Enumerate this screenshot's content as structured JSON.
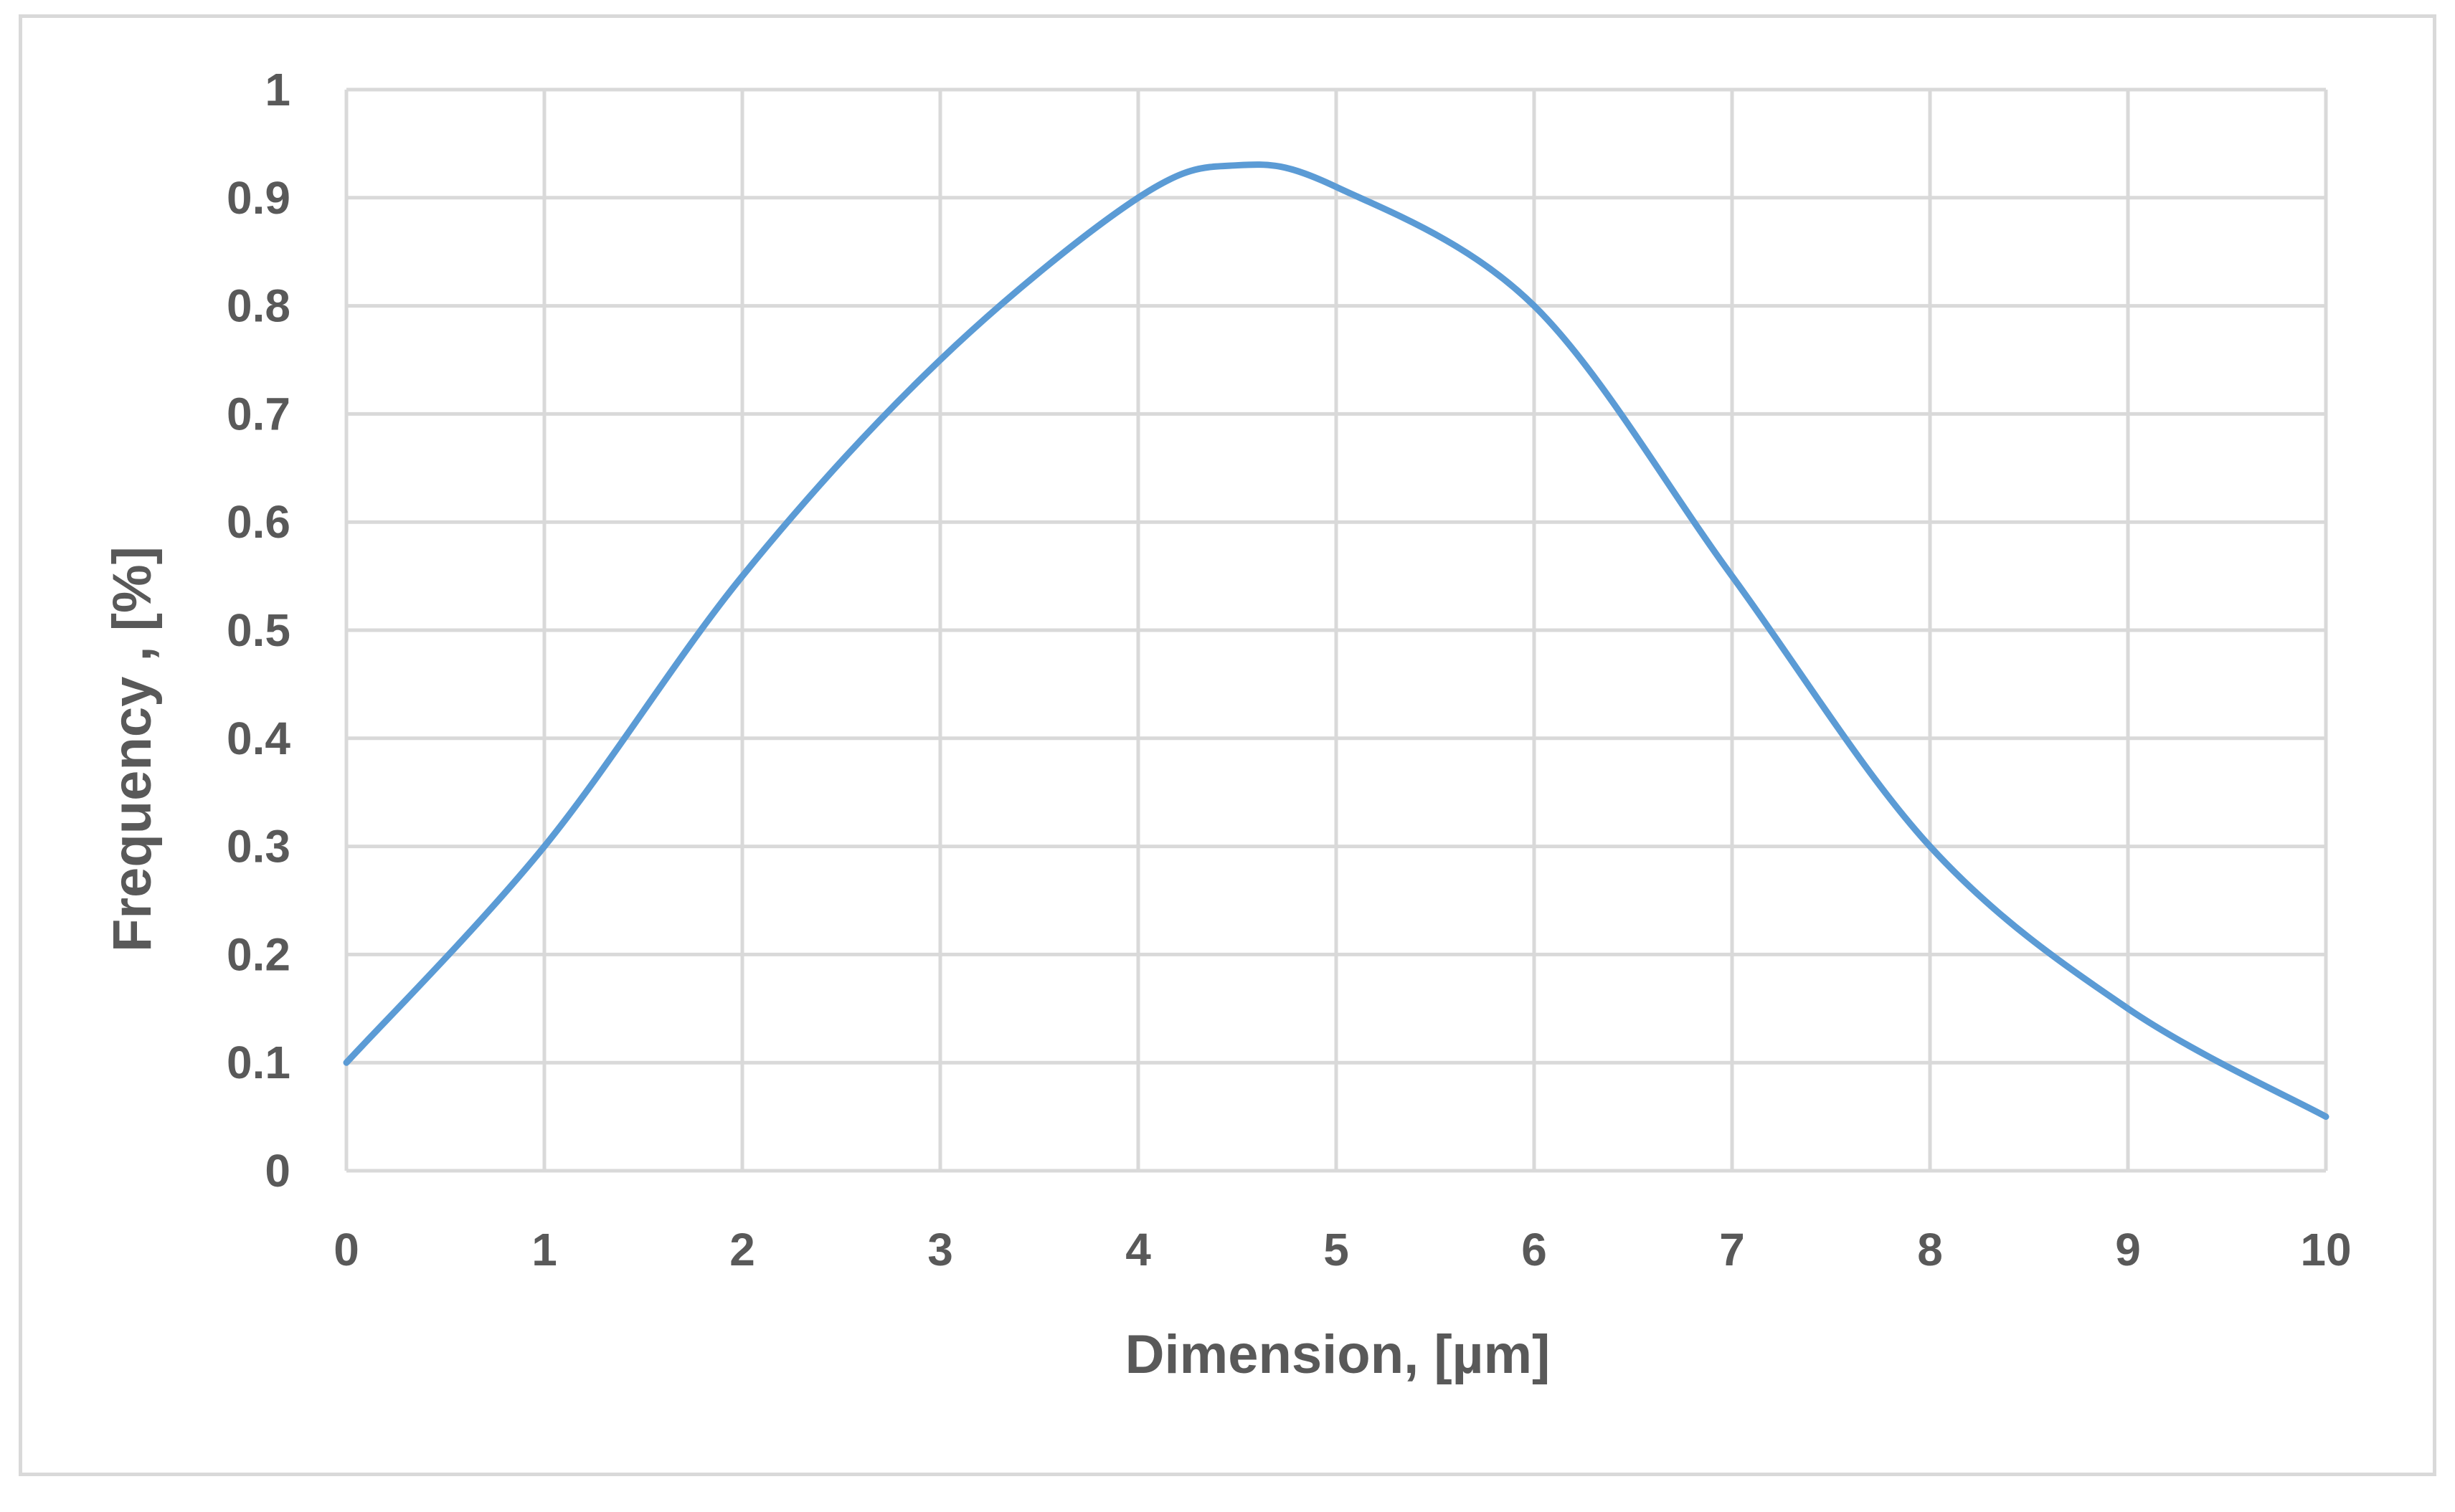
{
  "chart_data": {
    "type": "line",
    "title": "",
    "xlabel": "Dimension, [µm]",
    "ylabel": "Frequency , [%]",
    "xlim": [
      0,
      10
    ],
    "ylim": [
      0,
      1
    ],
    "x_ticks": [
      "0",
      "1",
      "2",
      "3",
      "4",
      "5",
      "6",
      "7",
      "8",
      "9",
      "10"
    ],
    "y_ticks": [
      "0",
      "0.1",
      "0.2",
      "0.3",
      "0.4",
      "0.5",
      "0.6",
      "0.7",
      "0.8",
      "0.9",
      "1"
    ],
    "grid": true,
    "legend": "none",
    "series": [
      {
        "color": "#5b9bd5",
        "smooth": true,
        "x": [
          0,
          1,
          2,
          3,
          4,
          4.5,
          5,
          6,
          7,
          8,
          9,
          10
        ],
        "y": [
          0.1,
          0.3,
          0.55,
          0.75,
          0.9,
          0.93,
          0.91,
          0.8,
          0.55,
          0.3,
          0.15,
          0.05
        ]
      }
    ]
  }
}
